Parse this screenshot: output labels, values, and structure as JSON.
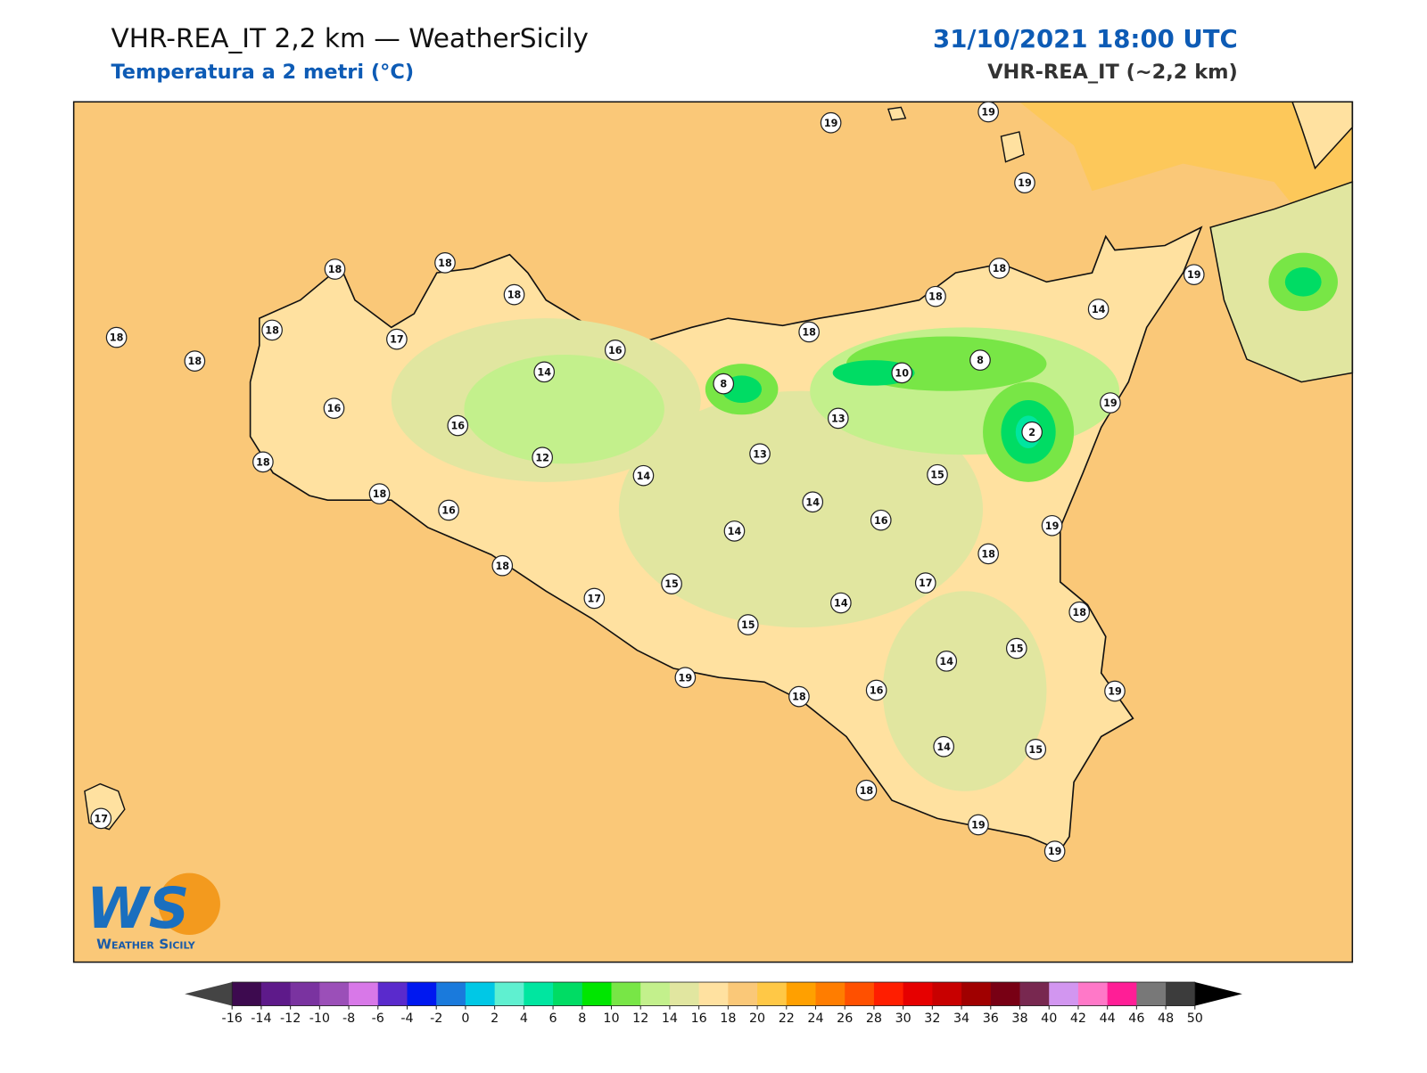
{
  "header": {
    "title": "VHR-REA_IT 2,2 km — WeatherSicily",
    "subtitle": "Temperatura a 2 metri (°C)",
    "datetime": "31/10/2021 18:00 UTC",
    "model": "VHR-REA_IT (~2,2 km)"
  },
  "logo": {
    "mark": "WS",
    "text": "Weather Sicily"
  },
  "stations": [
    19,
    19,
    19,
    18,
    18,
    18,
    18,
    18,
    18,
    17,
    16,
    14,
    16,
    16,
    8,
    18,
    12,
    14,
    13,
    18,
    16,
    18,
    17,
    15,
    14,
    15,
    19,
    18,
    14,
    13,
    18,
    10,
    18,
    18,
    8,
    2,
    15,
    16,
    18,
    17,
    14,
    16,
    14,
    15,
    18,
    19,
    15,
    14,
    18,
    19,
    19,
    19,
    19,
    14,
    19,
    17
  ],
  "colorbar": {
    "ticks": [
      -16,
      -14,
      -12,
      -10,
      -8,
      -6,
      -4,
      -2,
      0,
      2,
      4,
      6,
      8,
      10,
      12,
      14,
      16,
      18,
      20,
      22,
      24,
      26,
      28,
      30,
      32,
      34,
      36,
      38,
      40,
      42,
      44,
      46,
      48,
      50
    ],
    "colors": [
      "#3d0a4f",
      "#5e1a8a",
      "#7a33a0",
      "#9b4fb8",
      "#d878e8",
      "#5a2acc",
      "#0018f0",
      "#1a7adc",
      "#00c8e6",
      "#5ff0d0",
      "#00e6a0",
      "#00dc64",
      "#00e600",
      "#78e646",
      "#c3f08c",
      "#e1e6a0",
      "#ffe1a0",
      "#fac878",
      "#ffc846",
      "#ffa000",
      "#ff7d00",
      "#ff5000",
      "#ff1e00",
      "#e60000",
      "#c80000",
      "#a00000",
      "#780014",
      "#782850",
      "#d296f0",
      "#ff78c8",
      "#ff1e96",
      "#787878",
      "#3c3c3c"
    ],
    "under_color": "#444444",
    "over_color": "#000000"
  }
}
